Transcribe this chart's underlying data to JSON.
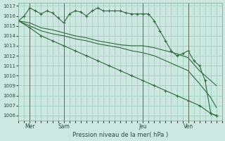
{
  "background_color": "#cce8e0",
  "grid_color": "#99ccbb",
  "line_color": "#2d6b3c",
  "title": "Pression niveau de la mer( hPa )",
  "ylim": [
    1005.5,
    1017.3
  ],
  "yticks": [
    1006,
    1007,
    1008,
    1009,
    1010,
    1011,
    1012,
    1013,
    1014,
    1015,
    1016,
    1017
  ],
  "xlim": [
    0,
    36
  ],
  "day_positions": [
    2,
    8,
    22,
    30
  ],
  "day_labels": [
    "Mer",
    "Sam",
    "Jeu",
    "Ven"
  ],
  "vline_positions": [
    2,
    8,
    22,
    30
  ],
  "series_jagged_x": [
    0,
    1,
    2,
    3,
    4,
    5,
    6,
    7,
    8,
    9,
    10,
    11,
    12,
    13,
    14,
    15,
    16,
    17,
    18,
    19,
    20,
    21,
    22,
    23,
    24,
    25,
    26,
    27,
    28,
    29,
    30,
    31,
    32,
    33,
    34,
    35
  ],
  "series_jagged_y": [
    1015.5,
    1016.0,
    1016.8,
    1016.5,
    1016.2,
    1016.5,
    1016.3,
    1015.8,
    1015.3,
    1016.2,
    1016.5,
    1016.4,
    1016.0,
    1016.5,
    1016.8,
    1016.5,
    1016.5,
    1016.5,
    1016.5,
    1016.3,
    1016.2,
    1016.2,
    1016.2,
    1016.2,
    1015.5,
    1014.5,
    1013.5,
    1012.5,
    1012.0,
    1012.2,
    1012.5,
    1011.5,
    1011.0,
    1009.5,
    1006.2,
    1006.0
  ],
  "series_mid1_x": [
    0,
    2,
    4,
    6,
    8,
    10,
    12,
    14,
    16,
    18,
    20,
    22,
    24,
    26,
    28,
    30,
    32,
    34,
    35
  ],
  "series_mid1_y": [
    1015.5,
    1015.3,
    1014.8,
    1014.6,
    1014.3,
    1014.0,
    1013.8,
    1013.5,
    1013.3,
    1013.1,
    1013.0,
    1013.0,
    1012.8,
    1012.5,
    1012.2,
    1011.8,
    1010.5,
    1009.5,
    1009.0
  ],
  "series_mid2_x": [
    0,
    2,
    4,
    6,
    8,
    10,
    12,
    14,
    16,
    18,
    20,
    22,
    24,
    26,
    28,
    30,
    32,
    34,
    35
  ],
  "series_mid2_y": [
    1015.5,
    1015.0,
    1014.5,
    1014.2,
    1014.0,
    1013.7,
    1013.5,
    1013.2,
    1013.0,
    1012.8,
    1012.5,
    1012.3,
    1012.0,
    1011.5,
    1011.0,
    1010.5,
    1009.2,
    1007.8,
    1006.8
  ],
  "series_steep_x": [
    0,
    2,
    4,
    6,
    8,
    10,
    12,
    14,
    16,
    18,
    20,
    22,
    24,
    26,
    28,
    30,
    32,
    34,
    35
  ],
  "series_steep_y": [
    1015.5,
    1014.8,
    1014.0,
    1013.5,
    1013.0,
    1012.5,
    1012.0,
    1011.5,
    1011.0,
    1010.5,
    1010.0,
    1009.5,
    1009.0,
    1008.5,
    1008.0,
    1007.5,
    1007.0,
    1006.2,
    1006.0
  ]
}
